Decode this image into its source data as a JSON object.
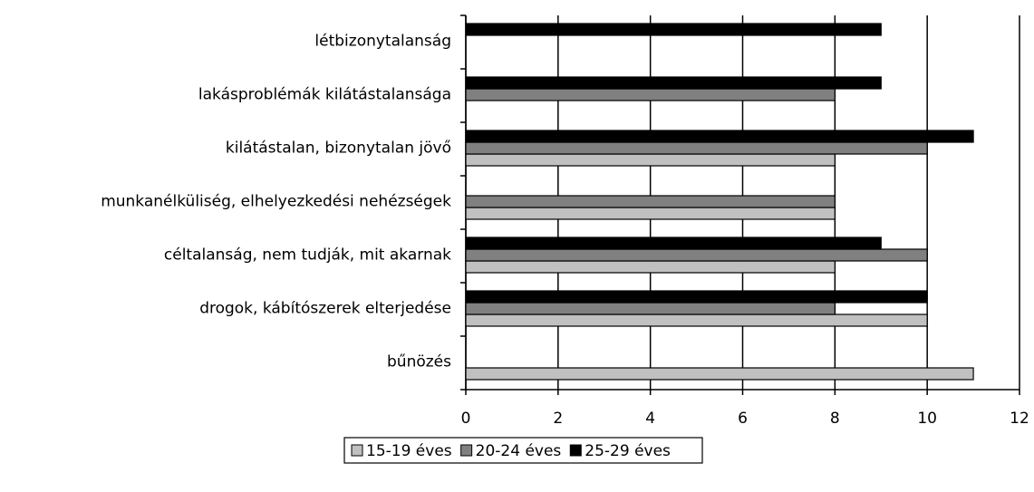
{
  "chart_data": {
    "type": "bar",
    "orientation": "horizontal",
    "categories": [
      "létbizonytalanság",
      "lakásproblémák kilátástalansága",
      "kilátástalan, bizonytalan jövő",
      "munkanélküliség, elhelyezkedési nehézségek",
      "céltalanság, nem tudják, mit akarnak",
      "drogok, kábítószerek elterjedése",
      "bűnözés"
    ],
    "series": [
      {
        "name": "15-19 éves",
        "color": "#c0c0c0",
        "values": [
          null,
          null,
          8,
          8,
          8,
          10,
          11
        ]
      },
      {
        "name": "20-24 éves",
        "color": "#808080",
        "values": [
          null,
          8,
          10,
          8,
          10,
          8,
          null
        ]
      },
      {
        "name": "25-29 éves",
        "color": "#000000",
        "values": [
          9,
          9,
          11,
          null,
          9,
          10,
          null
        ]
      }
    ],
    "xlim": [
      0,
      12
    ],
    "xticks": [
      0,
      2,
      4,
      6,
      8,
      10,
      12
    ],
    "grid": true,
    "legend": "bottom"
  }
}
